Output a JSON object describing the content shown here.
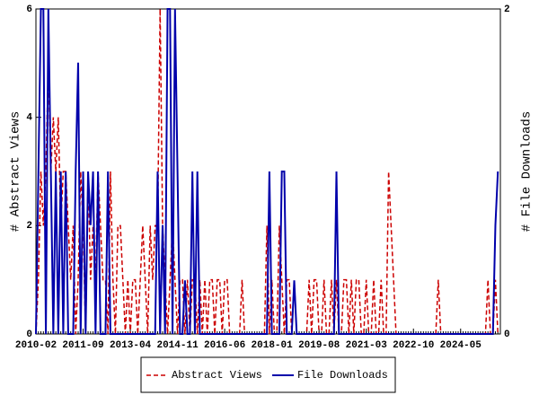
{
  "chart_data": {
    "type": "line",
    "x": [
      "2010-02",
      "2010-03",
      "2010-04",
      "2010-05",
      "2010-06",
      "2010-07",
      "2010-08",
      "2010-09",
      "2010-10",
      "2010-11",
      "2010-12",
      "2011-01",
      "2011-02",
      "2011-03",
      "2011-04",
      "2011-05",
      "2011-06",
      "2011-07",
      "2011-08",
      "2011-09",
      "2011-10",
      "2011-11",
      "2011-12",
      "2012-01",
      "2012-02",
      "2012-03",
      "2012-04",
      "2012-05",
      "2012-06",
      "2012-07",
      "2012-08",
      "2012-09",
      "2012-10",
      "2012-11",
      "2012-12",
      "2013-01",
      "2013-02",
      "2013-03",
      "2013-04",
      "2013-05",
      "2013-06",
      "2013-07",
      "2013-08",
      "2013-09",
      "2013-10",
      "2013-11",
      "2013-12",
      "2014-01",
      "2014-02",
      "2014-03",
      "2014-04",
      "2014-05",
      "2014-06",
      "2014-07",
      "2014-08",
      "2014-09",
      "2014-10",
      "2014-11",
      "2014-12",
      "2015-01",
      "2015-02",
      "2015-03",
      "2015-04",
      "2015-05",
      "2015-06",
      "2015-07",
      "2015-08",
      "2015-09",
      "2015-10",
      "2015-11",
      "2015-12",
      "2016-01",
      "2016-02",
      "2016-03",
      "2016-04",
      "2016-05",
      "2016-06",
      "2016-07",
      "2016-08",
      "2016-09",
      "2016-10",
      "2016-11",
      "2016-12",
      "2017-01",
      "2017-02",
      "2017-03",
      "2017-04",
      "2017-05",
      "2017-06",
      "2017-07",
      "2017-08",
      "2017-09",
      "2017-10",
      "2017-11",
      "2017-12",
      "2018-01",
      "2018-02",
      "2018-03",
      "2018-04",
      "2018-05",
      "2018-06",
      "2018-07",
      "2018-08",
      "2018-09",
      "2018-10",
      "2018-11",
      "2018-12",
      "2019-01",
      "2019-02",
      "2019-03",
      "2019-04",
      "2019-05",
      "2019-06",
      "2019-07",
      "2019-08",
      "2019-09",
      "2019-10",
      "2019-11",
      "2019-12",
      "2020-01",
      "2020-02",
      "2020-03",
      "2020-04",
      "2020-05",
      "2020-06",
      "2020-07",
      "2020-08",
      "2020-09",
      "2020-10",
      "2020-11",
      "2020-12",
      "2021-01",
      "2021-02",
      "2021-03",
      "2021-04",
      "2021-05",
      "2021-06",
      "2021-07",
      "2021-08",
      "2021-09",
      "2021-10",
      "2021-11",
      "2021-12",
      "2022-01",
      "2022-02",
      "2022-03",
      "2022-04",
      "2022-05",
      "2022-06",
      "2022-07",
      "2022-08",
      "2022-09",
      "2022-10",
      "2022-11",
      "2022-12",
      "2023-01",
      "2023-02",
      "2023-03",
      "2023-04",
      "2023-05",
      "2023-06",
      "2023-07",
      "2023-08",
      "2023-09",
      "2023-10",
      "2023-11",
      "2023-12",
      "2024-01",
      "2024-02",
      "2024-03",
      "2024-04",
      "2024-05",
      "2024-06",
      "2024-07",
      "2024-08",
      "2024-09",
      "2024-10",
      "2024-11",
      "2024-12",
      "2025-01",
      "2025-02",
      "2025-03",
      "2025-04",
      "2025-05",
      "2025-06",
      "2025-07",
      "2025-08"
    ],
    "xticks": [
      "2010-02",
      "2011-09",
      "2013-04",
      "2014-11",
      "2016-06",
      "2018-01",
      "2019-08",
      "2021-03",
      "2022-10",
      "2024-05"
    ],
    "ylabel": "# Abstract Views",
    "y2label": "# File Downloads",
    "ylim": [
      0,
      6
    ],
    "yticks": [
      0,
      2,
      4,
      6
    ],
    "y2lim": [
      0,
      2
    ],
    "y2ticks": [
      0,
      2
    ],
    "legend": "bottom",
    "series": [
      {
        "name": "Abstract Views",
        "color": "#cc0000",
        "dash": true,
        "values": [
          0,
          1,
          3,
          2,
          3,
          5,
          3,
          4,
          3,
          4,
          2,
          3,
          3,
          2,
          1,
          2,
          0,
          1,
          3,
          2,
          0,
          3,
          1,
          2,
          1,
          3,
          2,
          1,
          1,
          0,
          3,
          1,
          0,
          2,
          2,
          1,
          0,
          1,
          0,
          1,
          1,
          0,
          1,
          2,
          1,
          0,
          2,
          1,
          2,
          2,
          6,
          2,
          1,
          0,
          1,
          2,
          1,
          0,
          1,
          1,
          0,
          1,
          0,
          1,
          1,
          0,
          1,
          0,
          1,
          0,
          1,
          1,
          0,
          1,
          1,
          0,
          1,
          1,
          0,
          0,
          0,
          0,
          0,
          1,
          0,
          0,
          0,
          0,
          0,
          0,
          0,
          0,
          0,
          2,
          0,
          1,
          0,
          0,
          2,
          1,
          0,
          1,
          1,
          0,
          1,
          0,
          0,
          0,
          0,
          0,
          1,
          0,
          1,
          1,
          0,
          0,
          1,
          0,
          0,
          1,
          0,
          1,
          0,
          0,
          1,
          1,
          0,
          1,
          0,
          1,
          1,
          0,
          0,
          1,
          0,
          0,
          1,
          0,
          0,
          1,
          0,
          0,
          3,
          2,
          1,
          0,
          0,
          0,
          0,
          0,
          0,
          0,
          0,
          0,
          0,
          0,
          0,
          0,
          0,
          0,
          0,
          0,
          1,
          0,
          0,
          0,
          0,
          0,
          0,
          0,
          0,
          0,
          0,
          0,
          0,
          0,
          0,
          0,
          0,
          0,
          0,
          0,
          1,
          0,
          0,
          1,
          0
        ]
      },
      {
        "name": "File Downloads",
        "color": "#0000aa",
        "dash": false,
        "axis": "y2",
        "values": [
          0,
          1,
          2,
          2,
          0,
          2,
          1,
          0,
          1,
          0,
          1,
          0,
          1,
          0,
          0,
          0,
          1,
          1.67,
          0,
          1,
          0,
          1,
          0.67,
          1,
          0,
          1,
          0,
          0,
          0,
          1,
          0,
          0,
          0,
          0,
          0,
          0,
          0,
          0,
          0,
          0,
          0,
          0,
          0,
          0,
          0,
          0,
          0,
          0,
          0,
          1,
          0,
          0.67,
          0,
          2,
          2,
          0,
          2,
          1,
          0,
          0,
          0.33,
          0,
          0,
          1,
          0,
          1,
          0,
          0,
          0,
          0,
          0,
          0,
          0,
          0,
          0,
          0,
          0,
          0,
          0,
          0,
          0,
          0,
          0,
          0,
          0,
          0,
          0,
          0,
          0,
          0,
          0,
          0,
          0,
          0,
          1,
          0,
          0,
          0,
          0,
          1,
          1,
          0,
          0,
          0,
          0.33,
          0,
          0,
          0,
          0,
          0,
          0,
          0,
          0,
          0,
          0,
          0,
          0,
          0,
          0,
          0,
          0,
          1,
          0,
          0,
          0,
          0,
          0,
          0,
          0,
          0,
          0,
          0,
          0,
          0,
          0,
          0,
          0,
          0,
          0,
          0,
          0,
          0,
          0,
          0,
          0,
          0,
          0,
          0,
          0,
          0,
          0,
          0,
          0,
          0,
          0,
          0,
          0,
          0,
          0,
          0,
          0,
          0,
          0,
          0,
          0,
          0,
          0,
          0,
          0,
          0,
          0,
          0,
          0,
          0,
          0,
          0,
          0,
          0,
          0,
          0,
          0,
          0,
          0,
          0,
          0,
          0.67,
          1
        ]
      }
    ]
  }
}
